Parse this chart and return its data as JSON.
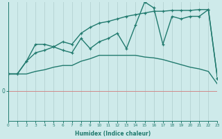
{
  "xlabel": "Humidex (Indice chaleur)",
  "bg_color": "#ceeaea",
  "line_color": "#217a6e",
  "grid_color": "#b8d5d5",
  "zero_line_color": "#d08888",
  "x_min": 0,
  "x_max": 23,
  "y_min": -3.5,
  "y_max": 10.5,
  "line1_x": [
    0,
    1,
    2,
    3,
    4,
    5,
    6,
    7,
    8,
    9,
    10,
    11,
    12,
    13,
    14,
    15,
    16,
    17,
    18,
    19,
    20,
    21,
    22,
    23
  ],
  "line1_y": [
    2.0,
    2.0,
    3.5,
    5.5,
    5.5,
    5.2,
    5.8,
    5.5,
    6.8,
    7.5,
    8.0,
    8.2,
    8.5,
    8.8,
    9.0,
    9.2,
    9.4,
    9.4,
    9.5,
    9.5,
    9.5,
    9.6,
    9.6,
    1.5
  ],
  "line2_x": [
    0,
    1,
    2,
    3,
    4,
    5,
    6,
    7,
    8,
    9,
    10,
    11,
    12,
    13,
    14,
    15,
    16,
    17,
    18,
    19,
    20,
    21,
    22,
    23
  ],
  "line2_y": [
    2.0,
    2.0,
    3.5,
    4.5,
    4.8,
    5.2,
    4.8,
    4.5,
    6.2,
    5.0,
    5.8,
    6.2,
    6.8,
    5.0,
    7.8,
    10.5,
    9.8,
    5.5,
    8.8,
    8.5,
    8.8,
    8.8,
    9.6,
    1.5
  ],
  "line3_x": [
    0,
    1,
    2,
    3,
    4,
    5,
    6,
    7,
    8,
    9,
    10,
    11,
    12,
    13,
    14,
    15,
    16,
    17,
    18,
    19,
    20,
    21,
    22,
    23
  ],
  "line3_y": [
    2.0,
    2.0,
    2.0,
    2.3,
    2.5,
    2.8,
    3.0,
    3.0,
    3.5,
    3.8,
    4.2,
    4.2,
    4.2,
    4.2,
    4.2,
    4.0,
    3.9,
    3.7,
    3.4,
    3.1,
    2.8,
    2.6,
    2.3,
    0.8
  ]
}
